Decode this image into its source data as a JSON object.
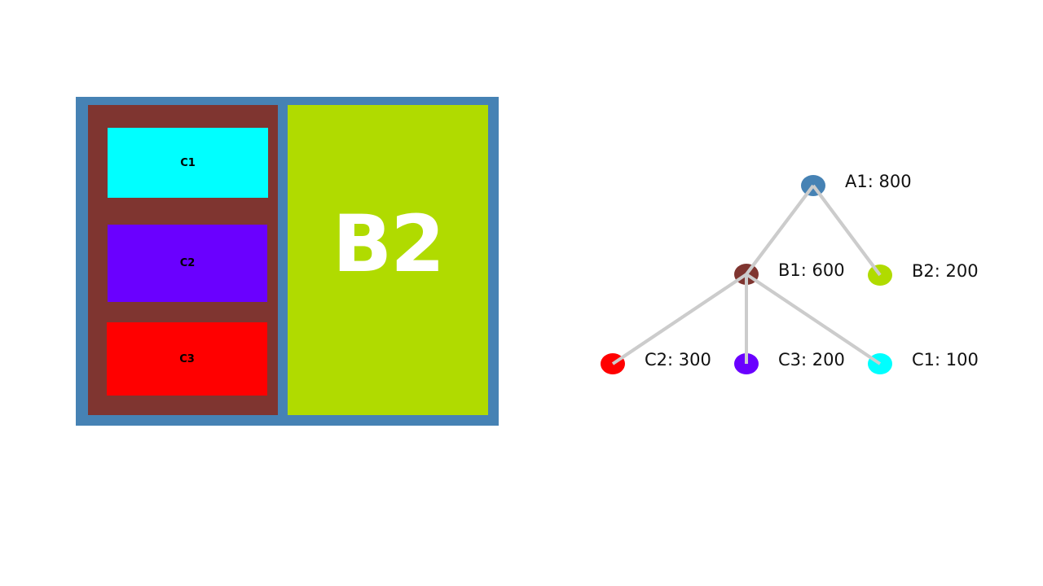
{
  "treemap": {
    "root": {
      "name": "A1",
      "color": "#4682b4"
    },
    "b1": {
      "name": "B1",
      "color": "#7f3530"
    },
    "b2": {
      "name": "B2",
      "color": "#b0db00",
      "label": "B2"
    },
    "c1": {
      "name": "C1",
      "color": "#00ffff",
      "label": "C1"
    },
    "c2": {
      "name": "C2",
      "color": "#6a00ff",
      "label": "C2"
    },
    "c3": {
      "name": "C3",
      "color": "#ff0000",
      "label": "C3"
    }
  },
  "tree": {
    "line_color": "#cccccc",
    "nodes": [
      {
        "id": "A1",
        "label": "A1: 800",
        "color": "#4682b4"
      },
      {
        "id": "B1",
        "label": "B1: 600",
        "color": "#7f3530"
      },
      {
        "id": "B2",
        "label": "B2: 200",
        "color": "#b0db00"
      },
      {
        "id": "C2",
        "label": "C2: 300",
        "color": "#ff0000"
      },
      {
        "id": "C3",
        "label": "C3: 200",
        "color": "#6a00ff"
      },
      {
        "id": "C1",
        "label": "C1: 100",
        "color": "#00ffff"
      }
    ],
    "edges": [
      [
        "A1",
        "B1"
      ],
      [
        "A1",
        "B2"
      ],
      [
        "B1",
        "C2"
      ],
      [
        "B1",
        "C3"
      ],
      [
        "B1",
        "C1"
      ]
    ]
  }
}
